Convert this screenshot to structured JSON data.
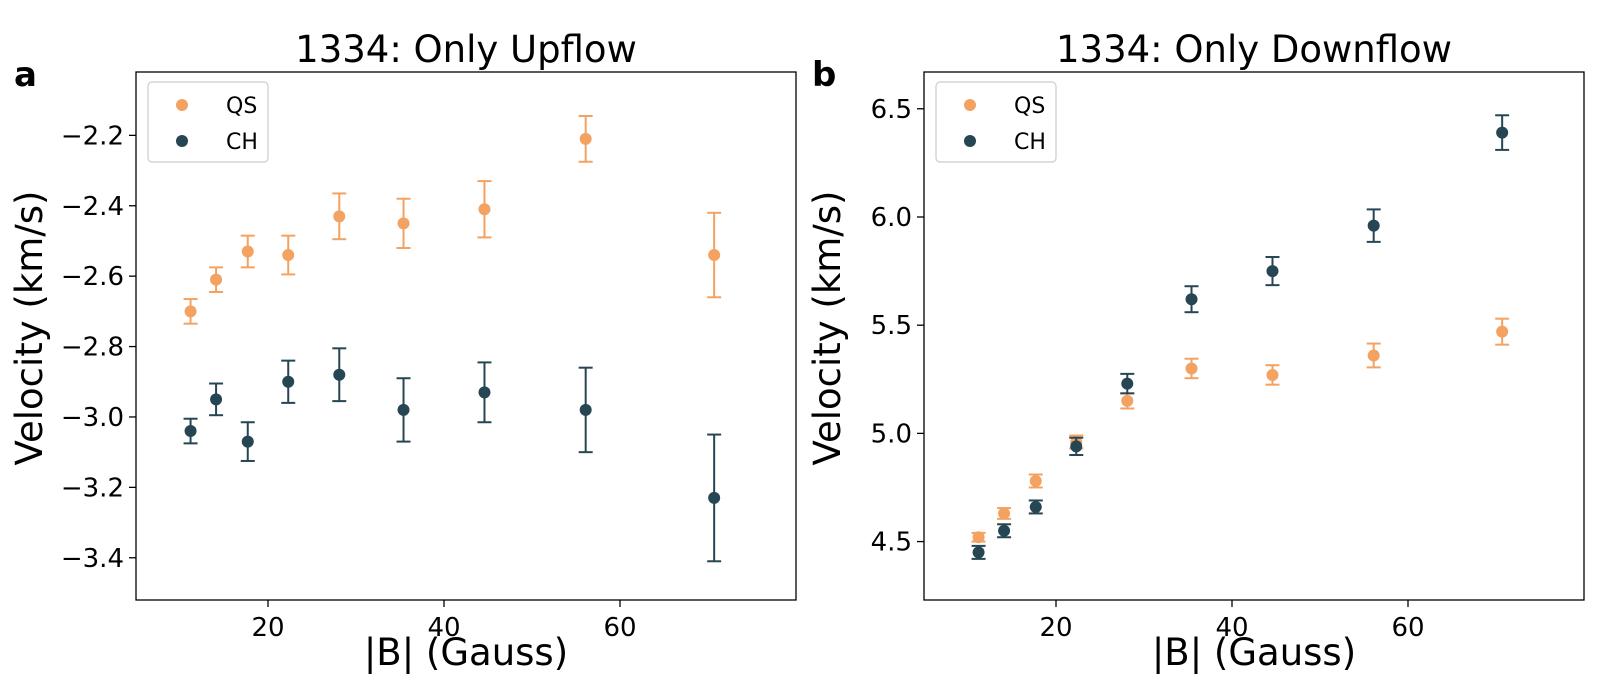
{
  "colors": {
    "QS": "#F4A261",
    "CH": "#264653"
  },
  "chart_data": [
    {
      "type": "scatter",
      "panel_label": "a",
      "title": "1334: Only Upflow",
      "xlabel": "|B| (Gauss)",
      "ylabel": "Velocity (km/s)",
      "xlim": [
        5,
        80
      ],
      "ylim": [
        -3.52,
        -2.02
      ],
      "xticks": [
        20,
        40,
        60
      ],
      "yticks": [
        -3.4,
        -3.2,
        -3.0,
        -2.8,
        -2.6,
        -2.4,
        -2.2
      ],
      "xtick_labels": [
        "20",
        "40",
        "60"
      ],
      "ytick_labels": [
        "−3.4",
        "−3.2",
        "−3.0",
        "−2.8",
        "−2.6",
        "−2.4",
        "−2.2"
      ],
      "grid": false,
      "legend_position": "top-left",
      "series": [
        {
          "name": "QS",
          "x": [
            11.2,
            14.1,
            17.7,
            22.3,
            28.1,
            35.4,
            44.6,
            56.1,
            70.7
          ],
          "y": [
            -2.7,
            -2.61,
            -2.53,
            -2.54,
            -2.43,
            -2.45,
            -2.41,
            -2.21,
            -2.54
          ],
          "err": [
            0.035,
            0.035,
            0.045,
            0.055,
            0.065,
            0.07,
            0.08,
            0.065,
            0.12
          ]
        },
        {
          "name": "CH",
          "x": [
            11.2,
            14.1,
            17.7,
            22.3,
            28.1,
            35.4,
            44.6,
            56.1,
            70.7
          ],
          "y": [
            -3.04,
            -2.95,
            -3.07,
            -2.9,
            -2.88,
            -2.98,
            -2.93,
            -2.98,
            -3.23
          ],
          "err": [
            0.035,
            0.045,
            0.055,
            0.06,
            0.075,
            0.09,
            0.085,
            0.12,
            0.18
          ]
        }
      ]
    },
    {
      "type": "scatter",
      "panel_label": "b",
      "title": "1334: Only Downflow",
      "xlabel": "|B| (Gauss)",
      "ylabel": "Velocity (km/s)",
      "xlim": [
        5,
        80
      ],
      "ylim": [
        4.23,
        6.67
      ],
      "xticks": [
        20,
        40,
        60
      ],
      "yticks": [
        4.5,
        5.0,
        5.5,
        6.0,
        6.5
      ],
      "xtick_labels": [
        "20",
        "40",
        "60"
      ],
      "ytick_labels": [
        "4.5",
        "5.0",
        "5.5",
        "6.0",
        "6.5"
      ],
      "grid": false,
      "legend_position": "top-left",
      "series": [
        {
          "name": "QS",
          "x": [
            11.2,
            14.1,
            17.7,
            22.3,
            28.1,
            35.4,
            44.6,
            56.1,
            70.7
          ],
          "y": [
            4.52,
            4.63,
            4.78,
            4.96,
            5.15,
            5.3,
            5.27,
            5.36,
            5.47
          ],
          "err": [
            0.02,
            0.025,
            0.03,
            0.03,
            0.035,
            0.045,
            0.045,
            0.055,
            0.06
          ]
        },
        {
          "name": "CH",
          "x": [
            11.2,
            14.1,
            17.7,
            22.3,
            28.1,
            35.4,
            44.6,
            56.1,
            70.7
          ],
          "y": [
            4.45,
            4.55,
            4.66,
            4.94,
            5.23,
            5.62,
            5.75,
            5.96,
            6.39
          ],
          "err": [
            0.03,
            0.03,
            0.03,
            0.04,
            0.045,
            0.06,
            0.065,
            0.075,
            0.08
          ]
        }
      ]
    }
  ]
}
